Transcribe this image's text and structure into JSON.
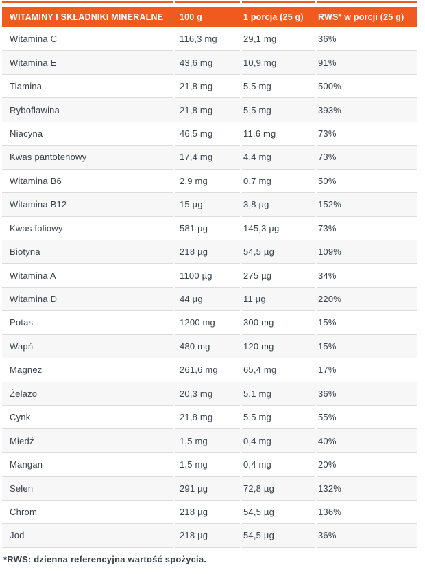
{
  "colors": {
    "accent_orange": "#F15A1E",
    "text_dark": "#3A414C",
    "divider_gray": "#DCDCDC",
    "zebra_gray": "#F7F7F8"
  },
  "header": {
    "columns": [
      "WITAMINY I SKŁADNIKI MINERALNE",
      "100 g",
      "1 porcja (25 g)",
      "RWS* w porcji (25 g)"
    ]
  },
  "rows": [
    {
      "name": "Witamina C",
      "per100": "116,3 mg",
      "portion": "29,1 mg",
      "rws": "36%"
    },
    {
      "name": "Witamina E",
      "per100": "43,6 mg",
      "portion": "10,9 mg",
      "rws": "91%"
    },
    {
      "name": "Tiamina",
      "per100": "21,8 mg",
      "portion": "5,5 mg",
      "rws": "500%"
    },
    {
      "name": "Ryboflawina",
      "per100": "21,8 mg",
      "portion": "5,5 mg",
      "rws": "393%"
    },
    {
      "name": "Niacyna",
      "per100": "46,5 mg",
      "portion": "11,6 mg",
      "rws": "73%"
    },
    {
      "name": "Kwas pantotenowy",
      "per100": "17,4 mg",
      "portion": "4,4 mg",
      "rws": "73%"
    },
    {
      "name": "Witamina B6",
      "per100": "2,9 mg",
      "portion": "0,7 mg",
      "rws": "50%"
    },
    {
      "name": "Witamina B12",
      "per100": "15 µg",
      "portion": "3,8 µg",
      "rws": "152%"
    },
    {
      "name": "Kwas foliowy",
      "per100": "581 µg",
      "portion": "145,3 µg",
      "rws": "73%"
    },
    {
      "name": "Biotyna",
      "per100": "218 µg",
      "portion": "54,5 µg",
      "rws": "109%"
    },
    {
      "name": "Witamina A",
      "per100": "1100 µg",
      "portion": "275 µg",
      "rws": "34%"
    },
    {
      "name": "Witamina D",
      "per100": "44 µg",
      "portion": "11 µg",
      "rws": "220%"
    },
    {
      "name": "Potas",
      "per100": "1200 mg",
      "portion": "300 mg",
      "rws": "15%"
    },
    {
      "name": "Wapń",
      "per100": "480 mg",
      "portion": "120 mg",
      "rws": "15%"
    },
    {
      "name": "Magnez",
      "per100": "261,6 mg",
      "portion": "65,4 mg",
      "rws": "17%"
    },
    {
      "name": "Żelazo",
      "per100": "20,3 mg",
      "portion": "5,1 mg",
      "rws": "36%"
    },
    {
      "name": "Cynk",
      "per100": "21,8 mg",
      "portion": "5,5 mg",
      "rws": "55%"
    },
    {
      "name": "Miedź",
      "per100": "1,5 mg",
      "portion": "0,4 mg",
      "rws": "40%"
    },
    {
      "name": "Mangan",
      "per100": "1,5 mg",
      "portion": "0,4 mg",
      "rws": "20%"
    },
    {
      "name": "Selen",
      "per100": "291 µg",
      "portion": "72,8 µg",
      "rws": "132%"
    },
    {
      "name": "Chrom",
      "per100": "218 µg",
      "portion": "54,5 µg",
      "rws": "136%"
    },
    {
      "name": "Jod",
      "per100": "218 µg",
      "portion": "54,5 µg",
      "rws": "36%"
    }
  ],
  "footnote": "*RWS: dzienna referencyjna wartość spożycia."
}
